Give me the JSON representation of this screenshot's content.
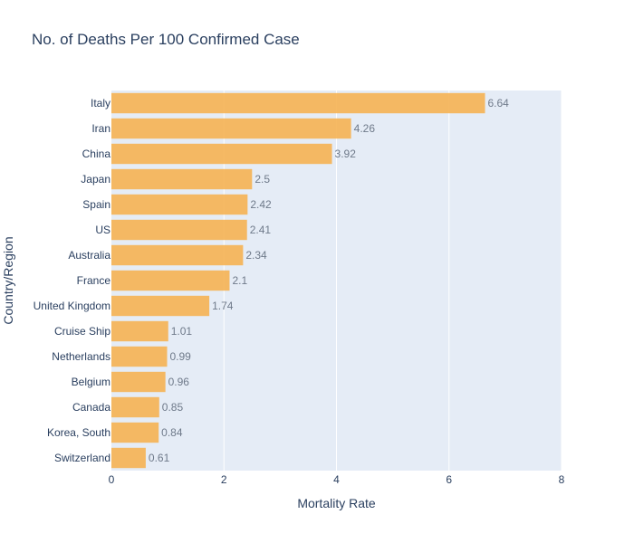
{
  "chart_data": {
    "type": "bar",
    "orientation": "horizontal",
    "title": "No. of Deaths Per 100 Confirmed Case",
    "xlabel": "Mortality Rate",
    "ylabel": "Country/Region",
    "xlim": [
      0,
      8
    ],
    "xticks": [
      0,
      2,
      4,
      6,
      8
    ],
    "grid": true,
    "bar_color": "#f5b253",
    "plot_background": "#e5ecf6",
    "categories": [
      "Italy",
      "Iran",
      "China",
      "Japan",
      "Spain",
      "US",
      "Australia",
      "France",
      "United Kingdom",
      "Cruise Ship",
      "Netherlands",
      "Belgium",
      "Canada",
      "Korea, South",
      "Switzerland"
    ],
    "values": [
      6.64,
      4.26,
      3.92,
      2.5,
      2.42,
      2.41,
      2.34,
      2.1,
      1.74,
      1.01,
      0.99,
      0.96,
      0.85,
      0.84,
      0.61
    ]
  }
}
